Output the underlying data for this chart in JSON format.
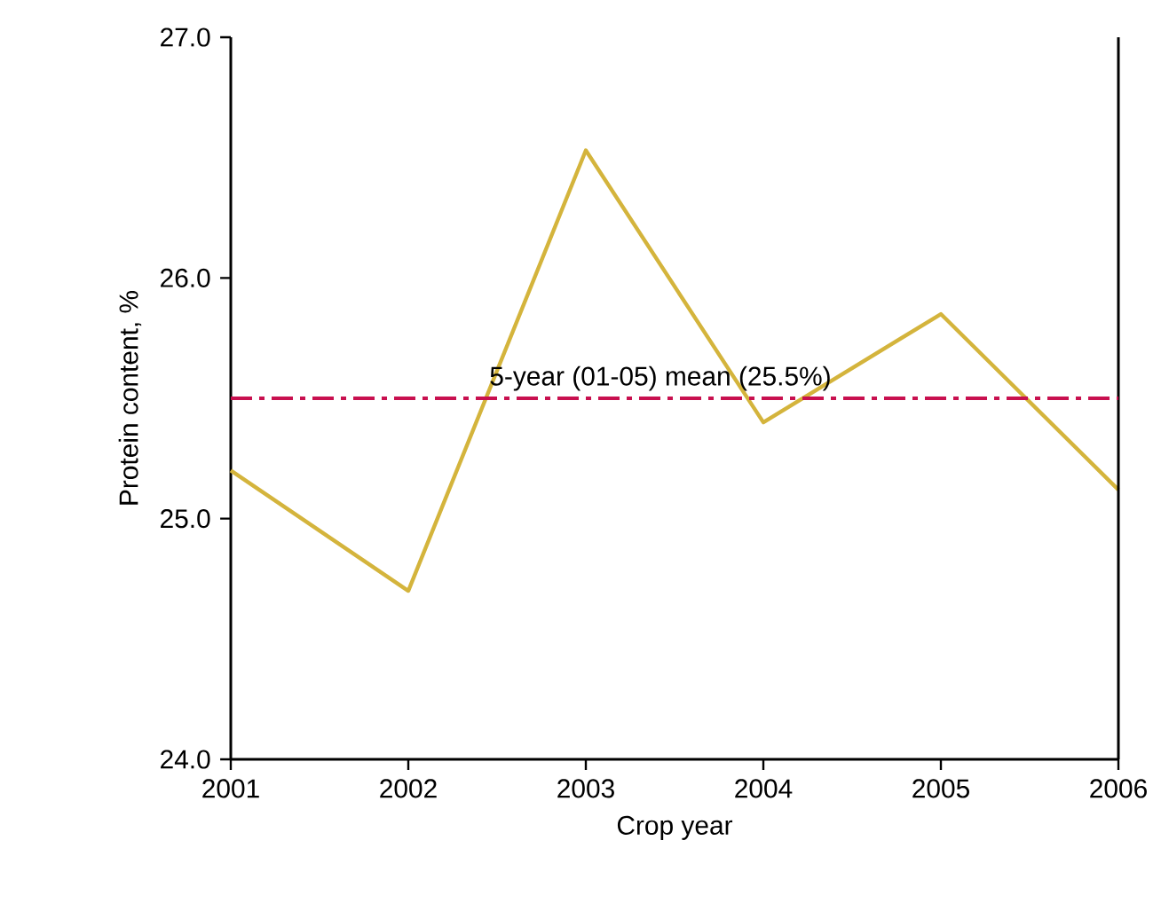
{
  "chart_data": {
    "type": "line",
    "xlabel": "Crop year",
    "ylabel": "Protein content, %",
    "x": [
      2001,
      2002,
      2003,
      2004,
      2005,
      2006
    ],
    "values": [
      25.2,
      24.7,
      26.53,
      25.4,
      25.85,
      25.12
    ],
    "color": "#d4b43c",
    "xlim": [
      2001,
      2006
    ],
    "xticks": [
      2001,
      2002,
      2003,
      2004,
      2005,
      2006
    ],
    "ylim": [
      24,
      27
    ],
    "yticks": [
      {
        "value": 24,
        "label": "24.0"
      },
      {
        "value": 25,
        "label": "25.0"
      },
      {
        "value": 26,
        "label": "26.0"
      },
      {
        "value": 27,
        "label": "27.0"
      }
    ],
    "ref_lines": [
      {
        "axis": "y",
        "value": 25.5,
        "label": "5-year (01-05) mean (25.5%)",
        "color": "#c8104f",
        "line_style": "dashdotted"
      }
    ],
    "grid": false,
    "marker": "none",
    "line_style": "solid"
  }
}
